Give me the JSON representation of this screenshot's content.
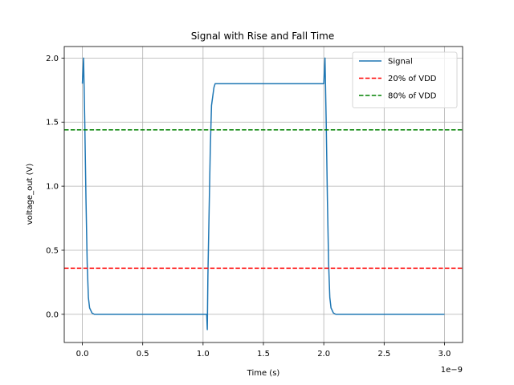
{
  "chart_data": {
    "type": "line",
    "title": "Signal with Rise and Fall Time",
    "xlabel": "Time (s)",
    "ylabel": "voltage_out (V)",
    "x_scale_label": "1e−9",
    "xlim": [
      -0.15,
      3.15
    ],
    "ylim": [
      -0.22,
      2.09
    ],
    "x_ticks": [
      0.0,
      0.5,
      1.0,
      1.5,
      2.0,
      2.5,
      3.0
    ],
    "x_tick_labels": [
      "0.0",
      "0.5",
      "1.0",
      "1.5",
      "2.0",
      "2.5",
      "3.0"
    ],
    "y_ticks": [
      0.0,
      0.5,
      1.0,
      1.5,
      2.0
    ],
    "y_tick_labels": [
      "0.0",
      "0.5",
      "1.0",
      "1.5",
      "2.0"
    ],
    "grid": true,
    "legend_position": "top-right",
    "series": [
      {
        "name": "Signal",
        "color": "#1f77b4",
        "style": "solid",
        "x": [
          0.0,
          0.01,
          0.02,
          0.03,
          0.04,
          0.05,
          0.06,
          0.08,
          0.1,
          0.2,
          0.5,
          1.0,
          1.03,
          1.035,
          1.04,
          1.05,
          1.06,
          1.07,
          1.09,
          1.1,
          1.12,
          1.2,
          1.5,
          2.0,
          2.01,
          2.02,
          2.03,
          2.04,
          2.05,
          2.06,
          2.08,
          2.1,
          2.2,
          2.5,
          3.0
        ],
        "y": [
          1.8,
          2.0,
          1.5,
          0.9,
          0.4,
          0.13,
          0.05,
          0.01,
          0.0,
          0.0,
          0.0,
          0.0,
          0.0,
          -0.12,
          0.3,
          0.8,
          1.3,
          1.63,
          1.77,
          1.8,
          1.8,
          1.8,
          1.8,
          1.8,
          2.0,
          1.5,
          0.9,
          0.4,
          0.13,
          0.05,
          0.01,
          0.0,
          0.0,
          0.0,
          0.0
        ]
      },
      {
        "name": "20% of VDD",
        "color": "#ff0000",
        "style": "dashed",
        "y_value": 0.36
      },
      {
        "name": "80% of VDD",
        "color": "#008000",
        "style": "dashed",
        "y_value": 1.44
      }
    ]
  }
}
